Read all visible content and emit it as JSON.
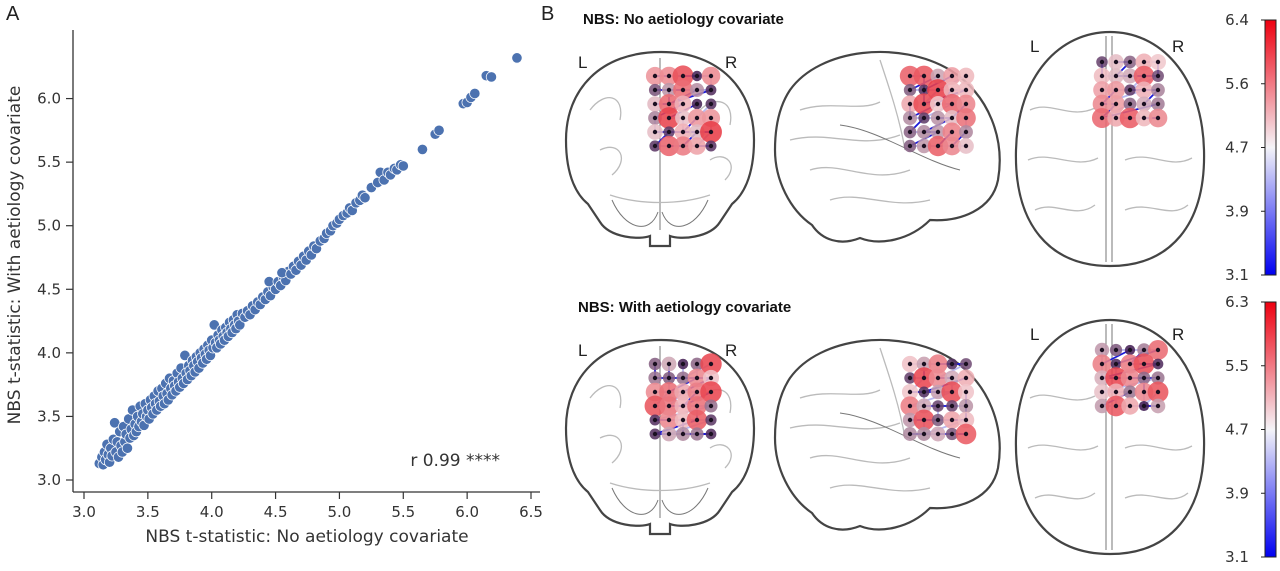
{
  "panels": {
    "a_letter": "A",
    "b_letter": "B"
  },
  "chart_data": [
    {
      "type": "scatter",
      "xlabel": "NBS t-statistic: No aetiology covariate",
      "ylabel": "NBS t-statistic: With aetiology covariate",
      "xlim": [
        3.0,
        6.5
      ],
      "ylim": [
        3.0,
        6.5
      ],
      "xticks": [
        3.0,
        3.5,
        4.0,
        4.5,
        5.0,
        5.5,
        6.0,
        6.5
      ],
      "yticks": [
        3.0,
        3.5,
        4.0,
        4.5,
        5.0,
        5.5,
        6.0
      ],
      "xtick_labels": [
        "3.0",
        "3.5",
        "4.0",
        "4.5",
        "5.0",
        "5.5",
        "6.0",
        "6.5"
      ],
      "ytick_labels": [
        "3.0",
        "3.5",
        "4.0",
        "4.5",
        "5.0",
        "5.5",
        "6.0"
      ],
      "annotation": "r 0.99 ****",
      "grid": false,
      "point_color": "#4c72b0",
      "points": [
        [
          3.12,
          3.13
        ],
        [
          3.14,
          3.18
        ],
        [
          3.15,
          3.12
        ],
        [
          3.16,
          3.22
        ],
        [
          3.17,
          3.16
        ],
        [
          3.18,
          3.28
        ],
        [
          3.19,
          3.2
        ],
        [
          3.2,
          3.14
        ],
        [
          3.21,
          3.25
        ],
        [
          3.22,
          3.19
        ],
        [
          3.23,
          3.32
        ],
        [
          3.24,
          3.45
        ],
        [
          3.25,
          3.22
        ],
        [
          3.26,
          3.3
        ],
        [
          3.27,
          3.18
        ],
        [
          3.28,
          3.38
        ],
        [
          3.29,
          3.27
        ],
        [
          3.3,
          3.22
        ],
        [
          3.31,
          3.42
        ],
        [
          3.32,
          3.3
        ],
        [
          3.33,
          3.36
        ],
        [
          3.34,
          3.25
        ],
        [
          3.35,
          3.48
        ],
        [
          3.36,
          3.33
        ],
        [
          3.37,
          3.4
        ],
        [
          3.38,
          3.55
        ],
        [
          3.39,
          3.35
        ],
        [
          3.4,
          3.44
        ],
        [
          3.41,
          3.38
        ],
        [
          3.42,
          3.5
        ],
        [
          3.43,
          3.42
        ],
        [
          3.44,
          3.58
        ],
        [
          3.45,
          3.46
        ],
        [
          3.46,
          3.52
        ],
        [
          3.47,
          3.43
        ],
        [
          3.48,
          3.6
        ],
        [
          3.49,
          3.5
        ],
        [
          3.5,
          3.55
        ],
        [
          3.51,
          3.48
        ],
        [
          3.52,
          3.63
        ],
        [
          3.53,
          3.57
        ],
        [
          3.54,
          3.52
        ],
        [
          3.55,
          3.66
        ],
        [
          3.56,
          3.6
        ],
        [
          3.57,
          3.55
        ],
        [
          3.58,
          3.7
        ],
        [
          3.59,
          3.62
        ],
        [
          3.6,
          3.58
        ],
        [
          3.61,
          3.72
        ],
        [
          3.62,
          3.66
        ],
        [
          3.63,
          3.6
        ],
        [
          3.64,
          3.76
        ],
        [
          3.65,
          3.68
        ],
        [
          3.66,
          3.63
        ],
        [
          3.67,
          3.8
        ],
        [
          3.68,
          3.72
        ],
        [
          3.69,
          3.67
        ],
        [
          3.7,
          3.78
        ],
        [
          3.71,
          3.74
        ],
        [
          3.72,
          3.7
        ],
        [
          3.73,
          3.84
        ],
        [
          3.74,
          3.77
        ],
        [
          3.75,
          3.73
        ],
        [
          3.76,
          3.88
        ],
        [
          3.77,
          3.8
        ],
        [
          3.78,
          3.76
        ],
        [
          3.79,
          3.98
        ],
        [
          3.8,
          3.84
        ],
        [
          3.81,
          3.79
        ],
        [
          3.82,
          3.9
        ],
        [
          3.83,
          3.86
        ],
        [
          3.84,
          3.82
        ],
        [
          3.85,
          3.94
        ],
        [
          3.86,
          3.9
        ],
        [
          3.87,
          3.85
        ],
        [
          3.88,
          3.97
        ],
        [
          3.89,
          3.93
        ],
        [
          3.9,
          3.88
        ],
        [
          3.91,
          4.0
        ],
        [
          3.92,
          3.96
        ],
        [
          3.93,
          3.92
        ],
        [
          3.94,
          4.03
        ],
        [
          3.95,
          3.99
        ],
        [
          3.96,
          3.95
        ],
        [
          3.97,
          4.06
        ],
        [
          3.98,
          4.02
        ],
        [
          3.99,
          3.98
        ],
        [
          4.0,
          4.1
        ],
        [
          4.01,
          4.04
        ],
        [
          4.02,
          4.22
        ],
        [
          4.03,
          4.08
        ],
        [
          4.04,
          4.04
        ],
        [
          4.05,
          4.14
        ],
        [
          4.06,
          4.1
        ],
        [
          4.07,
          4.07
        ],
        [
          4.08,
          4.18
        ],
        [
          4.09,
          4.13
        ],
        [
          4.1,
          4.1
        ],
        [
          4.11,
          4.2
        ],
        [
          4.12,
          4.16
        ],
        [
          4.13,
          4.13
        ],
        [
          4.14,
          4.24
        ],
        [
          4.15,
          4.19
        ],
        [
          4.16,
          4.16
        ],
        [
          4.17,
          4.26
        ],
        [
          4.18,
          4.22
        ],
        [
          4.19,
          4.19
        ],
        [
          4.2,
          4.3
        ],
        [
          4.21,
          4.25
        ],
        [
          4.22,
          4.22
        ],
        [
          4.24,
          4.31
        ],
        [
          4.26,
          4.28
        ],
        [
          4.28,
          4.33
        ],
        [
          4.3,
          4.3
        ],
        [
          4.32,
          4.37
        ],
        [
          4.34,
          4.34
        ],
        [
          4.36,
          4.4
        ],
        [
          4.38,
          4.38
        ],
        [
          4.4,
          4.44
        ],
        [
          4.42,
          4.42
        ],
        [
          4.44,
          4.48
        ],
        [
          4.46,
          4.45
        ],
        [
          4.48,
          4.52
        ],
        [
          4.45,
          4.56
        ],
        [
          4.5,
          4.5
        ],
        [
          4.52,
          4.56
        ],
        [
          4.54,
          4.53
        ],
        [
          4.56,
          4.6
        ],
        [
          4.58,
          4.57
        ],
        [
          4.6,
          4.64
        ],
        [
          4.55,
          4.63
        ],
        [
          4.62,
          4.62
        ],
        [
          4.64,
          4.68
        ],
        [
          4.66,
          4.65
        ],
        [
          4.68,
          4.72
        ],
        [
          4.7,
          4.69
        ],
        [
          4.72,
          4.76
        ],
        [
          4.74,
          4.73
        ],
        [
          4.76,
          4.8
        ],
        [
          4.78,
          4.77
        ],
        [
          4.8,
          4.84
        ],
        [
          4.82,
          4.82
        ],
        [
          4.85,
          4.88
        ],
        [
          4.88,
          4.9
        ],
        [
          4.9,
          4.94
        ],
        [
          4.93,
          4.96
        ],
        [
          4.95,
          5.0
        ],
        [
          4.98,
          5.02
        ],
        [
          5.0,
          5.05
        ],
        [
          5.03,
          5.08
        ],
        [
          5.06,
          5.1
        ],
        [
          5.08,
          5.14
        ],
        [
          5.1,
          5.12
        ],
        [
          5.13,
          5.18
        ],
        [
          5.16,
          5.2
        ],
        [
          5.18,
          5.24
        ],
        [
          5.2,
          5.22
        ],
        [
          5.25,
          5.3
        ],
        [
          5.3,
          5.34
        ],
        [
          5.32,
          5.42
        ],
        [
          5.35,
          5.36
        ],
        [
          5.38,
          5.42
        ],
        [
          5.4,
          5.4
        ],
        [
          5.43,
          5.45
        ],
        [
          5.45,
          5.44
        ],
        [
          5.48,
          5.48
        ],
        [
          5.5,
          5.47
        ],
        [
          5.65,
          5.6
        ],
        [
          5.75,
          5.72
        ],
        [
          5.78,
          5.75
        ],
        [
          5.97,
          5.96
        ],
        [
          6.0,
          5.97
        ],
        [
          6.03,
          6.01
        ],
        [
          6.06,
          6.04
        ],
        [
          6.15,
          6.18
        ],
        [
          6.19,
          6.17
        ],
        [
          6.39,
          6.32
        ]
      ]
    },
    {
      "type": "colorbar",
      "cmap": "bwr",
      "ticks": [
        "6.4",
        "5.6",
        "4.7",
        "3.9",
        "3.1"
      ]
    },
    {
      "type": "colorbar",
      "cmap": "bwr",
      "ticks": [
        "6.3",
        "5.5",
        "4.7",
        "3.9",
        "3.1"
      ]
    }
  ],
  "brains": [
    {
      "title": "NBS: No aetiology covariate",
      "coronal_left": "L",
      "coronal_right": "R",
      "axial_left": "L",
      "axial_right": "R"
    },
    {
      "title": "NBS: With aetiology covariate",
      "coronal_left": "L",
      "coronal_right": "R",
      "axial_left": "L",
      "axial_right": "R"
    }
  ],
  "colors": {
    "red": "#e8101c",
    "white": "#f4f4f8",
    "blue": "#1010f0",
    "node_dark": "#3a1a48",
    "edge_blue": "#1a1ad8"
  }
}
